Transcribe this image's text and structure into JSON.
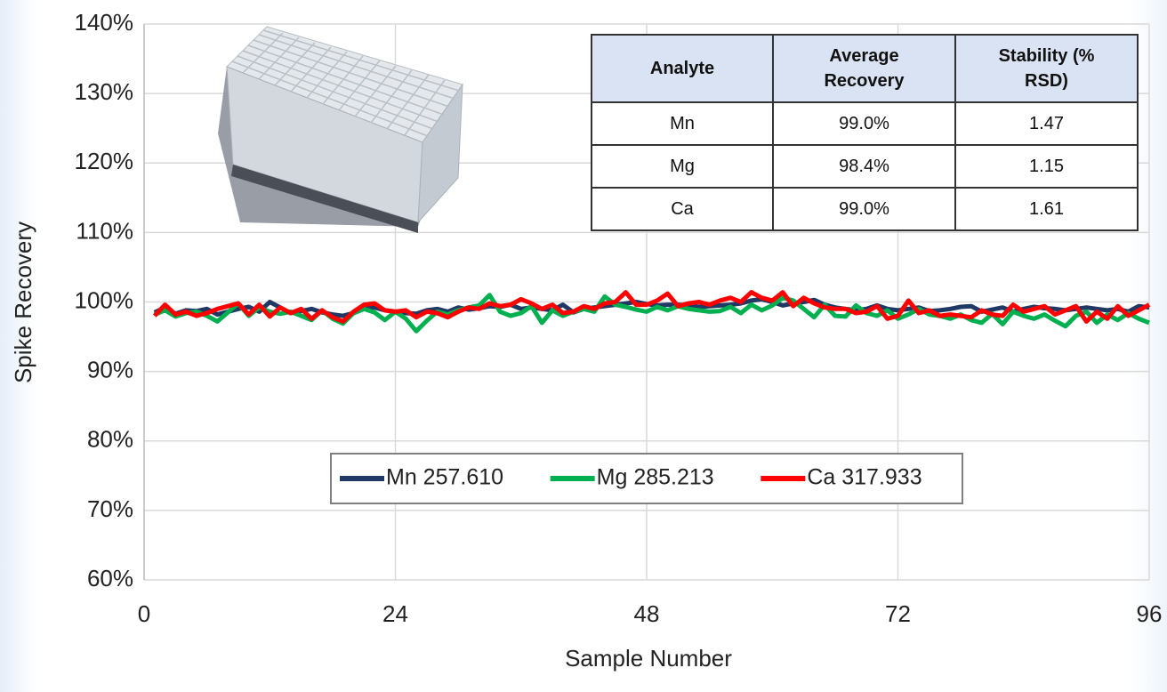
{
  "chart_data": {
    "type": "line",
    "x_label": "Sample Number",
    "y_label": "Spike Recovery",
    "x": [
      1,
      2,
      3,
      4,
      5,
      6,
      7,
      8,
      9,
      10,
      11,
      12,
      13,
      14,
      15,
      16,
      17,
      18,
      19,
      20,
      21,
      22,
      23,
      24,
      25,
      26,
      27,
      28,
      29,
      30,
      31,
      32,
      33,
      34,
      35,
      36,
      37,
      38,
      39,
      40,
      41,
      42,
      43,
      44,
      45,
      46,
      47,
      48,
      49,
      50,
      51,
      52,
      53,
      54,
      55,
      56,
      57,
      58,
      59,
      60,
      61,
      62,
      63,
      64,
      65,
      66,
      67,
      68,
      69,
      70,
      71,
      72,
      73,
      74,
      75,
      76,
      77,
      78,
      79,
      80,
      81,
      82,
      83,
      84,
      85,
      86,
      87,
      88,
      89,
      90,
      91,
      92,
      93,
      94,
      95,
      96
    ],
    "series": [
      {
        "name": "Mn 257.610",
        "color": "#1f3864",
        "values": [
          98.5,
          99.2,
          98.3,
          98.8,
          98.7,
          99.0,
          98.2,
          98.6,
          99.0,
          99.3,
          98.6,
          100.0,
          99.2,
          98.4,
          98.7,
          99.0,
          98.5,
          98.2,
          98.0,
          98.4,
          99.0,
          99.2,
          98.8,
          98.6,
          98.4,
          98.3,
          98.8,
          99.0,
          98.6,
          99.2,
          98.9,
          99.1,
          99.4,
          99.3,
          99.6,
          99.0,
          99.2,
          99.0,
          98.8,
          99.6,
          98.5,
          99.0,
          99.2,
          99.4,
          99.6,
          99.8,
          100.0,
          99.7,
          99.5,
          99.6,
          99.6,
          99.5,
          99.3,
          99.4,
          99.5,
          99.6,
          99.8,
          100.2,
          100.4,
          100.0,
          99.5,
          99.8,
          100.0,
          100.3,
          99.6,
          99.2,
          99.0,
          98.8,
          99.0,
          99.5,
          99.0,
          98.8,
          99.0,
          99.2,
          98.7,
          98.8,
          99.0,
          99.3,
          99.4,
          98.6,
          98.9,
          99.2,
          98.6,
          99.0,
          99.3,
          99.1,
          99.0,
          98.8,
          99.0,
          99.2,
          99.0,
          98.8,
          99.0,
          98.6,
          99.4,
          99.2
        ]
      },
      {
        "name": "Mg 285.213",
        "color": "#00b050",
        "values": [
          98.2,
          98.8,
          97.9,
          98.4,
          98.6,
          98.0,
          97.2,
          98.5,
          99.8,
          98.0,
          99.2,
          98.6,
          98.3,
          98.6,
          98.0,
          97.4,
          98.8,
          97.6,
          96.9,
          98.4,
          99.0,
          98.5,
          97.4,
          98.6,
          97.6,
          95.8,
          97.3,
          98.6,
          98.2,
          98.8,
          99.2,
          99.5,
          101.0,
          98.6,
          98.0,
          98.4,
          99.4,
          97.0,
          98.8,
          98.0,
          98.6,
          99.0,
          98.6,
          100.8,
          99.6,
          99.3,
          98.9,
          98.6,
          99.3,
          98.8,
          99.4,
          99.0,
          98.8,
          98.6,
          98.7,
          99.3,
          98.4,
          99.6,
          98.8,
          99.5,
          100.6,
          100.2,
          99.0,
          97.8,
          99.6,
          98.0,
          97.9,
          99.5,
          98.4,
          98.0,
          98.8,
          97.6,
          98.2,
          99.0,
          98.2,
          98.0,
          97.6,
          98.2,
          97.4,
          97.0,
          98.3,
          96.8,
          98.6,
          98.0,
          97.6,
          98.2,
          97.3,
          96.5,
          98.0,
          98.6,
          97.0,
          98.2,
          97.4,
          98.4,
          97.6,
          97.0
        ]
      },
      {
        "name": "Ca 317.933",
        "color": "#ff0000",
        "values": [
          98.0,
          99.6,
          98.2,
          98.6,
          98.0,
          98.4,
          99.0,
          99.4,
          99.8,
          98.2,
          99.6,
          97.9,
          99.2,
          98.4,
          99.0,
          97.6,
          98.8,
          97.8,
          97.2,
          98.6,
          99.6,
          99.8,
          98.8,
          98.6,
          98.8,
          97.8,
          98.6,
          98.4,
          97.8,
          98.6,
          99.2,
          99.0,
          99.8,
          99.4,
          99.6,
          100.4,
          99.8,
          99.0,
          99.6,
          98.4,
          98.6,
          99.4,
          99.0,
          99.8,
          100.0,
          101.4,
          99.6,
          99.6,
          100.2,
          101.2,
          99.4,
          99.8,
          100.0,
          99.6,
          100.2,
          100.6,
          100.0,
          101.4,
          100.6,
          100.2,
          101.4,
          99.4,
          100.6,
          99.8,
          99.2,
          99.0,
          99.0,
          98.4,
          98.6,
          99.4,
          97.6,
          98.0,
          100.2,
          98.4,
          98.8,
          98.0,
          98.2,
          98.0,
          97.8,
          98.8,
          98.2,
          98.0,
          99.6,
          98.6,
          99.0,
          99.4,
          98.2,
          98.8,
          99.4,
          97.2,
          98.6,
          97.6,
          99.4,
          98.0,
          98.8,
          99.6
        ]
      }
    ],
    "xlim": [
      0,
      96
    ],
    "xticks": [
      0,
      24,
      48,
      72,
      96
    ],
    "ylim": [
      60,
      140
    ],
    "yticks": [
      {
        "value": 60,
        "label": "60%"
      },
      {
        "value": 70,
        "label": "70%"
      },
      {
        "value": 80,
        "label": "80%"
      },
      {
        "value": 90,
        "label": "90%"
      },
      {
        "value": 100,
        "label": "100%"
      },
      {
        "value": 110,
        "label": "110%"
      },
      {
        "value": 120,
        "label": "120%"
      },
      {
        "value": 130,
        "label": "130%"
      },
      {
        "value": 140,
        "label": "140%"
      }
    ],
    "grid": true,
    "legend": "lower center",
    "table": {
      "header": [
        "Analyte",
        "Average Recovery",
        "Stability (% RSD)"
      ],
      "rows": [
        [
          "Mn",
          "99.0%",
          1.47
        ],
        [
          "Mg",
          "98.4%",
          1.15
        ],
        [
          "Ca",
          "99.0%",
          1.61
        ]
      ]
    }
  }
}
